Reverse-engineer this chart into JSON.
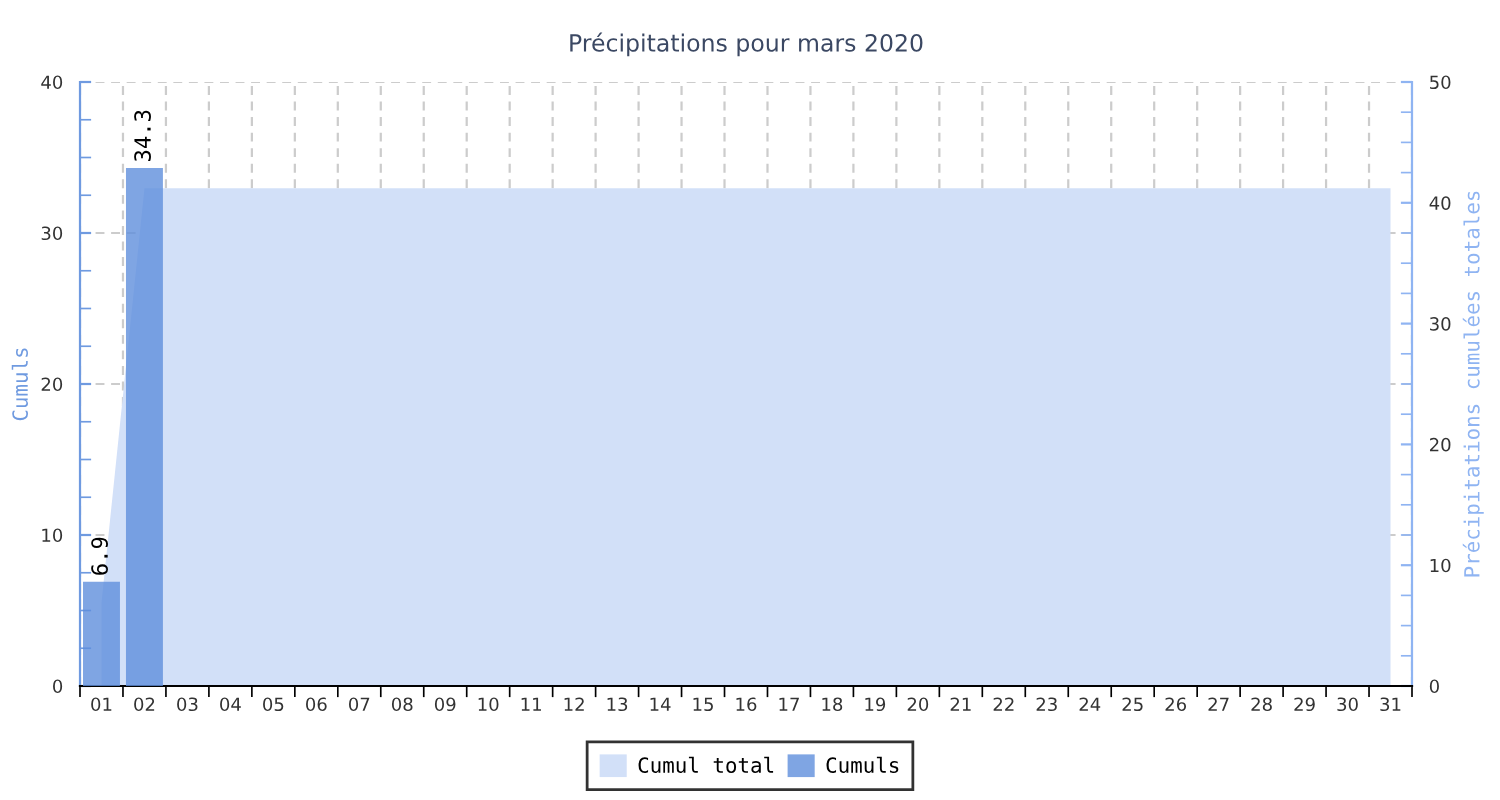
{
  "chart_data": {
    "type": "bar",
    "title": "Précipitations pour mars 2020",
    "ylabel": "Cumuls",
    "y2label": "Précipitations cumulées totales",
    "categories": [
      "01",
      "02",
      "03",
      "04",
      "05",
      "06",
      "07",
      "08",
      "09",
      "10",
      "11",
      "12",
      "13",
      "14",
      "15",
      "16",
      "17",
      "18",
      "19",
      "20",
      "21",
      "22",
      "23",
      "24",
      "25",
      "26",
      "27",
      "28",
      "29",
      "30",
      "31"
    ],
    "ylim": [
      0,
      40
    ],
    "yticks": [
      0,
      {
        "value": 2.5,
        "label": null
      },
      {
        "value": 5,
        "label": null
      },
      {
        "value": 7.5,
        "label": null
      },
      10,
      {
        "value": 12.5,
        "label": null
      },
      {
        "value": 15,
        "label": null
      },
      {
        "value": 17.5,
        "label": null
      },
      20,
      {
        "value": 22.5,
        "label": null
      },
      {
        "value": 25,
        "label": null
      },
      {
        "value": 27.5,
        "label": null
      },
      30,
      {
        "value": 32.5,
        "label": null
      },
      {
        "value": 35,
        "label": null
      },
      {
        "value": 37.5,
        "label": null
      },
      40
    ],
    "y2lim": [
      0,
      50
    ],
    "y2ticks": [
      0,
      {
        "value": 2.5,
        "label": null
      },
      {
        "value": 5,
        "label": null
      },
      {
        "value": 7.5,
        "label": null
      },
      10,
      {
        "value": 12.5,
        "label": null
      },
      {
        "value": 15,
        "label": null
      },
      {
        "value": 17.5,
        "label": null
      },
      20,
      {
        "value": 22.5,
        "label": null
      },
      {
        "value": 25,
        "label": null
      },
      {
        "value": 27.5,
        "label": null
      },
      30,
      {
        "value": 32.5,
        "label": null
      },
      {
        "value": 35,
        "label": null
      },
      {
        "value": 37.5,
        "label": null
      },
      40,
      {
        "value": 42.5,
        "label": null
      },
      {
        "value": 45,
        "label": null
      },
      {
        "value": 47.5,
        "label": null
      },
      50
    ],
    "grid": true,
    "legend": "bottom",
    "series": [
      {
        "name": "Cumul total",
        "type": "area",
        "axis": "y2",
        "color": "#d2e0f8",
        "values": [
          6.9,
          41.2,
          41.2,
          41.2,
          41.2,
          41.2,
          41.2,
          41.2,
          41.2,
          41.2,
          41.2,
          41.2,
          41.2,
          41.2,
          41.2,
          41.2,
          41.2,
          41.2,
          41.2,
          41.2,
          41.2,
          41.2,
          41.2,
          41.2,
          41.2,
          41.2,
          41.2,
          41.2,
          41.2,
          41.2,
          41.2
        ]
      },
      {
        "name": "Cumuls",
        "axis": "y",
        "color": "#5f8fdc",
        "values": [
          6.9,
          34.3,
          null,
          null,
          null,
          null,
          null,
          null,
          null,
          null,
          null,
          null,
          null,
          null,
          null,
          null,
          null,
          null,
          null,
          null,
          null,
          null,
          null,
          null,
          null,
          null,
          null,
          null,
          null,
          null,
          null
        ],
        "value_labels": [
          "6.9",
          "34.3",
          null,
          null,
          null,
          null,
          null,
          null,
          null,
          null,
          null,
          null,
          null,
          null,
          null,
          null,
          null,
          null,
          null,
          null,
          null,
          null,
          null,
          null,
          null,
          null,
          null,
          null,
          null,
          null,
          null
        ]
      }
    ]
  }
}
